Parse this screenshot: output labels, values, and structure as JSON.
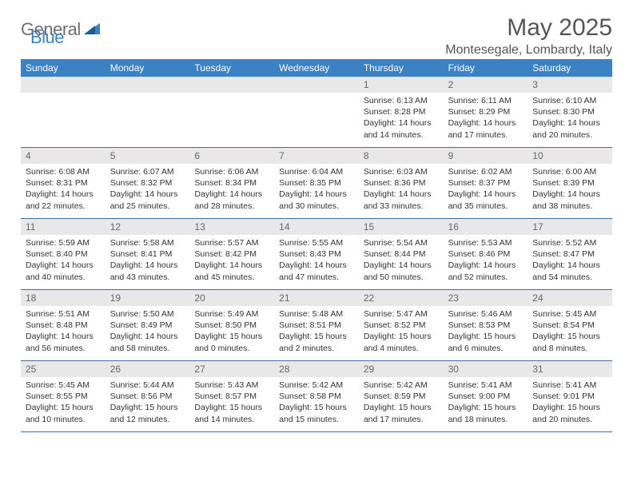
{
  "brand": {
    "part1": "General",
    "part2": "Blue"
  },
  "title": "May 2025",
  "location": "Montesegale, Lombardy, Italy",
  "colors": {
    "header_bg": "#3b82c4",
    "daynum_bg": "#e8e8e8",
    "rule": "#3b6fa0",
    "text": "#333333",
    "muted": "#555555",
    "logo_gray": "#6f6f6f"
  },
  "weekdays": [
    "Sunday",
    "Monday",
    "Tuesday",
    "Wednesday",
    "Thursday",
    "Friday",
    "Saturday"
  ],
  "weeks": [
    [
      null,
      null,
      null,
      null,
      {
        "n": "1",
        "sr": "Sunrise: 6:13 AM",
        "ss": "Sunset: 8:28 PM",
        "dl": "Daylight: 14 hours and 14 minutes."
      },
      {
        "n": "2",
        "sr": "Sunrise: 6:11 AM",
        "ss": "Sunset: 8:29 PM",
        "dl": "Daylight: 14 hours and 17 minutes."
      },
      {
        "n": "3",
        "sr": "Sunrise: 6:10 AM",
        "ss": "Sunset: 8:30 PM",
        "dl": "Daylight: 14 hours and 20 minutes."
      }
    ],
    [
      {
        "n": "4",
        "sr": "Sunrise: 6:08 AM",
        "ss": "Sunset: 8:31 PM",
        "dl": "Daylight: 14 hours and 22 minutes."
      },
      {
        "n": "5",
        "sr": "Sunrise: 6:07 AM",
        "ss": "Sunset: 8:32 PM",
        "dl": "Daylight: 14 hours and 25 minutes."
      },
      {
        "n": "6",
        "sr": "Sunrise: 6:06 AM",
        "ss": "Sunset: 8:34 PM",
        "dl": "Daylight: 14 hours and 28 minutes."
      },
      {
        "n": "7",
        "sr": "Sunrise: 6:04 AM",
        "ss": "Sunset: 8:35 PM",
        "dl": "Daylight: 14 hours and 30 minutes."
      },
      {
        "n": "8",
        "sr": "Sunrise: 6:03 AM",
        "ss": "Sunset: 8:36 PM",
        "dl": "Daylight: 14 hours and 33 minutes."
      },
      {
        "n": "9",
        "sr": "Sunrise: 6:02 AM",
        "ss": "Sunset: 8:37 PM",
        "dl": "Daylight: 14 hours and 35 minutes."
      },
      {
        "n": "10",
        "sr": "Sunrise: 6:00 AM",
        "ss": "Sunset: 8:39 PM",
        "dl": "Daylight: 14 hours and 38 minutes."
      }
    ],
    [
      {
        "n": "11",
        "sr": "Sunrise: 5:59 AM",
        "ss": "Sunset: 8:40 PM",
        "dl": "Daylight: 14 hours and 40 minutes."
      },
      {
        "n": "12",
        "sr": "Sunrise: 5:58 AM",
        "ss": "Sunset: 8:41 PM",
        "dl": "Daylight: 14 hours and 43 minutes."
      },
      {
        "n": "13",
        "sr": "Sunrise: 5:57 AM",
        "ss": "Sunset: 8:42 PM",
        "dl": "Daylight: 14 hours and 45 minutes."
      },
      {
        "n": "14",
        "sr": "Sunrise: 5:55 AM",
        "ss": "Sunset: 8:43 PM",
        "dl": "Daylight: 14 hours and 47 minutes."
      },
      {
        "n": "15",
        "sr": "Sunrise: 5:54 AM",
        "ss": "Sunset: 8:44 PM",
        "dl": "Daylight: 14 hours and 50 minutes."
      },
      {
        "n": "16",
        "sr": "Sunrise: 5:53 AM",
        "ss": "Sunset: 8:46 PM",
        "dl": "Daylight: 14 hours and 52 minutes."
      },
      {
        "n": "17",
        "sr": "Sunrise: 5:52 AM",
        "ss": "Sunset: 8:47 PM",
        "dl": "Daylight: 14 hours and 54 minutes."
      }
    ],
    [
      {
        "n": "18",
        "sr": "Sunrise: 5:51 AM",
        "ss": "Sunset: 8:48 PM",
        "dl": "Daylight: 14 hours and 56 minutes."
      },
      {
        "n": "19",
        "sr": "Sunrise: 5:50 AM",
        "ss": "Sunset: 8:49 PM",
        "dl": "Daylight: 14 hours and 58 minutes."
      },
      {
        "n": "20",
        "sr": "Sunrise: 5:49 AM",
        "ss": "Sunset: 8:50 PM",
        "dl": "Daylight: 15 hours and 0 minutes."
      },
      {
        "n": "21",
        "sr": "Sunrise: 5:48 AM",
        "ss": "Sunset: 8:51 PM",
        "dl": "Daylight: 15 hours and 2 minutes."
      },
      {
        "n": "22",
        "sr": "Sunrise: 5:47 AM",
        "ss": "Sunset: 8:52 PM",
        "dl": "Daylight: 15 hours and 4 minutes."
      },
      {
        "n": "23",
        "sr": "Sunrise: 5:46 AM",
        "ss": "Sunset: 8:53 PM",
        "dl": "Daylight: 15 hours and 6 minutes."
      },
      {
        "n": "24",
        "sr": "Sunrise: 5:45 AM",
        "ss": "Sunset: 8:54 PM",
        "dl": "Daylight: 15 hours and 8 minutes."
      }
    ],
    [
      {
        "n": "25",
        "sr": "Sunrise: 5:45 AM",
        "ss": "Sunset: 8:55 PM",
        "dl": "Daylight: 15 hours and 10 minutes."
      },
      {
        "n": "26",
        "sr": "Sunrise: 5:44 AM",
        "ss": "Sunset: 8:56 PM",
        "dl": "Daylight: 15 hours and 12 minutes."
      },
      {
        "n": "27",
        "sr": "Sunrise: 5:43 AM",
        "ss": "Sunset: 8:57 PM",
        "dl": "Daylight: 15 hours and 14 minutes."
      },
      {
        "n": "28",
        "sr": "Sunrise: 5:42 AM",
        "ss": "Sunset: 8:58 PM",
        "dl": "Daylight: 15 hours and 15 minutes."
      },
      {
        "n": "29",
        "sr": "Sunrise: 5:42 AM",
        "ss": "Sunset: 8:59 PM",
        "dl": "Daylight: 15 hours and 17 minutes."
      },
      {
        "n": "30",
        "sr": "Sunrise: 5:41 AM",
        "ss": "Sunset: 9:00 PM",
        "dl": "Daylight: 15 hours and 18 minutes."
      },
      {
        "n": "31",
        "sr": "Sunrise: 5:41 AM",
        "ss": "Sunset: 9:01 PM",
        "dl": "Daylight: 15 hours and 20 minutes."
      }
    ]
  ]
}
